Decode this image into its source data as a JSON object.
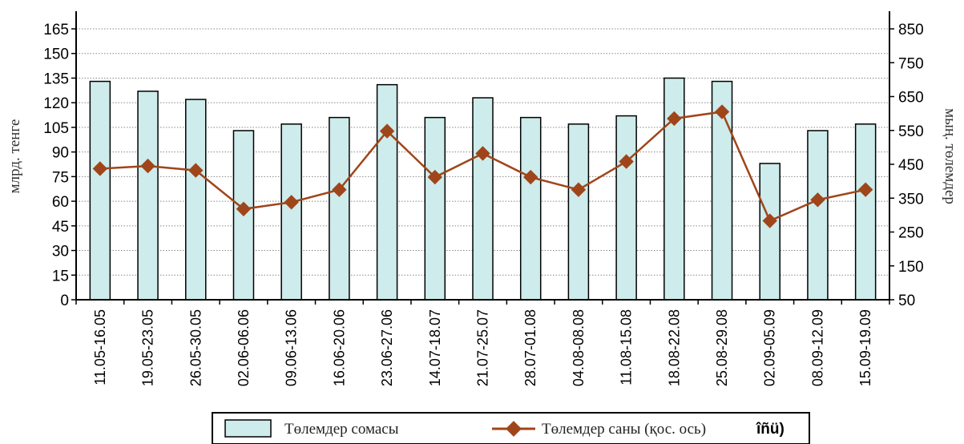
{
  "chart_data": {
    "type": "bar",
    "categories": [
      "11.05-16.05",
      "19.05-23.05",
      "26.05-30.05",
      "02.06-06.06",
      "09.06-13.06",
      "16.06-20.06",
      "23.06-27.06",
      "14.07-18.07",
      "21.07-25.07",
      "28.07-01.08",
      "04.08-08.08",
      "11.08-15.08",
      "18.08-22.08",
      "25.08-29.08",
      "02.09-05.09",
      "08.09-12.09",
      "15.09-19.09"
    ],
    "series": [
      {
        "name": "Төлемдер сомасы",
        "type": "bar",
        "axis": "left",
        "color": "#cdeceb",
        "values": [
          133,
          127,
          122,
          103,
          107,
          111,
          131,
          111,
          123,
          111,
          107,
          112,
          135,
          133,
          83,
          103,
          107
        ]
      },
      {
        "name": "Төлемдер саны (қос. ось)",
        "type": "line",
        "axis": "right",
        "color": "#a0451a",
        "values": [
          437,
          445,
          432,
          318,
          338,
          375,
          548,
          412,
          482,
          412,
          375,
          458,
          585,
          605,
          283,
          345,
          375
        ]
      }
    ],
    "ylabel": "млрд. тенге",
    "y2label": "мың. төлемдер",
    "ylim": [
      0,
      165
    ],
    "yticks": [
      0,
      15,
      30,
      45,
      60,
      75,
      90,
      105,
      120,
      135,
      150,
      165
    ],
    "y2lim": [
      50,
      850
    ],
    "y2ticks": [
      50,
      150,
      250,
      350,
      450,
      550,
      650,
      750,
      850
    ],
    "grid": true,
    "legend_position": "bottom",
    "legend_extra": "îñü)"
  }
}
